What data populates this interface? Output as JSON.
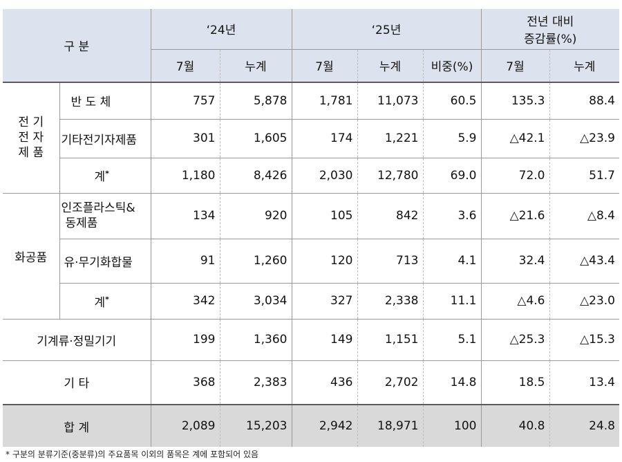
{
  "header": {
    "category": "구 분",
    "y2024": "‘24년",
    "y2025": "‘25년",
    "change_line1": "전년 대비",
    "change_line2": "증감률(%)",
    "month": "7월",
    "cumulative": "누계",
    "share": "비중(%)"
  },
  "groups": {
    "electronics": "전 기\n전 자\n제 품",
    "chemicals": "화공품"
  },
  "rows": [
    {
      "label": "반 도 체",
      "v": [
        "757",
        "5,878",
        "1,781",
        "11,073",
        "60.5",
        "135.3",
        "88.4"
      ]
    },
    {
      "label": "기타전기자제품",
      "v": [
        "301",
        "1,605",
        "174",
        "1,221",
        "5.9",
        "△42.1",
        "△23.9"
      ]
    },
    {
      "label": "계",
      "mark": "*",
      "v": [
        "1,180",
        "8,426",
        "2,030",
        "12,780",
        "69.0",
        "72.0",
        "51.7"
      ]
    },
    {
      "label_line1": "인조플라스틱&",
      "label_line2": "동제품",
      "v": [
        "134",
        "920",
        "105",
        "842",
        "3.6",
        "△21.6",
        "△8.4"
      ]
    },
    {
      "label": "유·무기화합물",
      "v": [
        "91",
        "1,260",
        "120",
        "713",
        "4.1",
        "32.4",
        "△43.4"
      ]
    },
    {
      "label": "계",
      "mark": "*",
      "v": [
        "342",
        "3,034",
        "327",
        "2,338",
        "11.1",
        "△4.6",
        "△23.0"
      ]
    },
    {
      "label": "기계류·정밀기기",
      "v": [
        "199",
        "1,360",
        "149",
        "1,151",
        "5.1",
        "△25.3",
        "△15.3"
      ]
    },
    {
      "label": "기 타",
      "v": [
        "368",
        "2,383",
        "436",
        "2,702",
        "14.8",
        "18.5",
        "13.4"
      ]
    },
    {
      "label": "합 계",
      "v": [
        "2,089",
        "15,203",
        "2,942",
        "18,971",
        "100",
        "40.8",
        "24.8"
      ]
    }
  ],
  "footnote": "* 구분의 분류기준(중분류)의 주요품목 이외의 품목은 계에 포함되어 있음"
}
